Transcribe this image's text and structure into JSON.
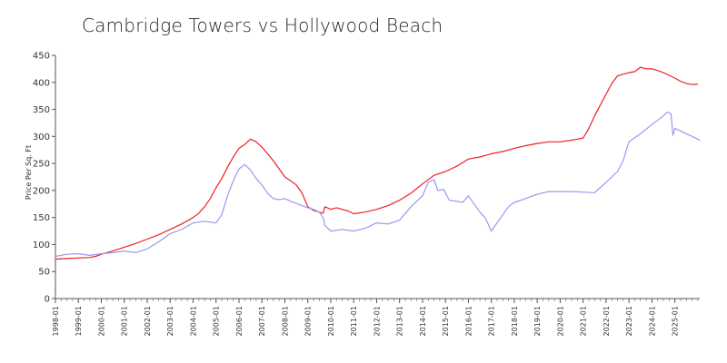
{
  "chart_data": {
    "type": "line",
    "title": "Cambridge Towers vs Hollywood Beach",
    "xlabel": "",
    "ylabel": "Price Per Sq. Ft",
    "ylim": [
      0,
      450
    ],
    "y_ticks": [
      0,
      50,
      100,
      150,
      200,
      250,
      300,
      350,
      400,
      450
    ],
    "x_range": [
      "1998-01",
      "2026-02"
    ],
    "x_tick_labels": [
      "1998-01",
      "1999-01",
      "2000-01",
      "2001-01",
      "2002-01",
      "2003-01",
      "2004-01",
      "2005-01",
      "2006-01",
      "2007-01",
      "2008-01",
      "2009-01",
      "2010-01",
      "2011-01",
      "2012-01",
      "2013-01",
      "2014-01",
      "2015-01",
      "2016-01",
      "2017-01",
      "2018-01",
      "2019-01",
      "2020-01",
      "2021-01",
      "2022-01",
      "2023-01",
      "2024-01",
      "2025-01"
    ],
    "grid": false,
    "legend": "none",
    "series": [
      {
        "color": "#ee2222",
        "points": [
          [
            "1998-01",
            73
          ],
          [
            "1998-07",
            74
          ],
          [
            "1999-01",
            75
          ],
          [
            "1999-07",
            76
          ],
          [
            "1999-10",
            78
          ],
          [
            "2000-01",
            82
          ],
          [
            "2000-07",
            88
          ],
          [
            "2001-01",
            95
          ],
          [
            "2001-07",
            102
          ],
          [
            "2002-01",
            110
          ],
          [
            "2002-07",
            118
          ],
          [
            "2003-01",
            128
          ],
          [
            "2003-07",
            138
          ],
          [
            "2004-01",
            150
          ],
          [
            "2004-04",
            158
          ],
          [
            "2004-07",
            170
          ],
          [
            "2004-10",
            185
          ],
          [
            "2005-01",
            205
          ],
          [
            "2005-04",
            222
          ],
          [
            "2005-07",
            243
          ],
          [
            "2005-10",
            262
          ],
          [
            "2006-01",
            278
          ],
          [
            "2006-04",
            285
          ],
          [
            "2006-07",
            295
          ],
          [
            "2006-10",
            290
          ],
          [
            "2007-01",
            280
          ],
          [
            "2007-04",
            268
          ],
          [
            "2007-07",
            255
          ],
          [
            "2007-10",
            240
          ],
          [
            "2008-01",
            225
          ],
          [
            "2008-04",
            218
          ],
          [
            "2008-07",
            210
          ],
          [
            "2008-10",
            195
          ],
          [
            "2009-01",
            170
          ],
          [
            "2009-04",
            163
          ],
          [
            "2009-07",
            160
          ],
          [
            "2009-09",
            158
          ],
          [
            "2009-10",
            170
          ],
          [
            "2010-01",
            165
          ],
          [
            "2010-04",
            168
          ],
          [
            "2010-07",
            165
          ],
          [
            "2010-10",
            162
          ],
          [
            "2011-01",
            157
          ],
          [
            "2011-07",
            160
          ],
          [
            "2012-01",
            165
          ],
          [
            "2012-07",
            172
          ],
          [
            "2013-01",
            182
          ],
          [
            "2013-07",
            195
          ],
          [
            "2014-01",
            212
          ],
          [
            "2014-07",
            228
          ],
          [
            "2015-01",
            235
          ],
          [
            "2015-07",
            245
          ],
          [
            "2016-01",
            258
          ],
          [
            "2016-07",
            262
          ],
          [
            "2017-01",
            268
          ],
          [
            "2017-07",
            272
          ],
          [
            "2018-01",
            278
          ],
          [
            "2018-07",
            283
          ],
          [
            "2019-01",
            287
          ],
          [
            "2019-07",
            290
          ],
          [
            "2020-01",
            290
          ],
          [
            "2020-07",
            293
          ],
          [
            "2021-01",
            297
          ],
          [
            "2021-04",
            315
          ],
          [
            "2021-07",
            338
          ],
          [
            "2021-10",
            358
          ],
          [
            "2022-01",
            378
          ],
          [
            "2022-04",
            398
          ],
          [
            "2022-07",
            412
          ],
          [
            "2022-10",
            415
          ],
          [
            "2023-01",
            418
          ],
          [
            "2023-04",
            420
          ],
          [
            "2023-07",
            428
          ],
          [
            "2023-10",
            425
          ],
          [
            "2024-01",
            425
          ],
          [
            "2024-04",
            422
          ],
          [
            "2024-07",
            418
          ],
          [
            "2024-10",
            413
          ],
          [
            "2025-01",
            408
          ],
          [
            "2025-04",
            402
          ],
          [
            "2025-07",
            398
          ],
          [
            "2025-10",
            396
          ],
          [
            "2026-01",
            397
          ]
        ]
      },
      {
        "color": "#9999ee",
        "points": [
          [
            "1998-01",
            78
          ],
          [
            "1998-07",
            82
          ],
          [
            "1999-01",
            83
          ],
          [
            "1999-07",
            80
          ],
          [
            "2000-01",
            83
          ],
          [
            "2000-07",
            85
          ],
          [
            "2001-01",
            88
          ],
          [
            "2001-07",
            85
          ],
          [
            "2002-01",
            92
          ],
          [
            "2002-07",
            105
          ],
          [
            "2003-01",
            120
          ],
          [
            "2003-07",
            128
          ],
          [
            "2004-01",
            140
          ],
          [
            "2004-07",
            143
          ],
          [
            "2005-01",
            140
          ],
          [
            "2005-04",
            155
          ],
          [
            "2005-07",
            190
          ],
          [
            "2005-10",
            218
          ],
          [
            "2006-01",
            240
          ],
          [
            "2006-04",
            248
          ],
          [
            "2006-07",
            238
          ],
          [
            "2006-10",
            222
          ],
          [
            "2007-01",
            210
          ],
          [
            "2007-04",
            195
          ],
          [
            "2007-07",
            185
          ],
          [
            "2007-10",
            183
          ],
          [
            "2008-01",
            185
          ],
          [
            "2008-04",
            180
          ],
          [
            "2008-07",
            176
          ],
          [
            "2008-10",
            172
          ],
          [
            "2009-01",
            168
          ],
          [
            "2009-04",
            165
          ],
          [
            "2009-07",
            160
          ],
          [
            "2009-09",
            150
          ],
          [
            "2009-10",
            135
          ],
          [
            "2010-01",
            125
          ],
          [
            "2010-07",
            128
          ],
          [
            "2011-01",
            125
          ],
          [
            "2011-07",
            130
          ],
          [
            "2012-01",
            140
          ],
          [
            "2012-07",
            138
          ],
          [
            "2013-01",
            145
          ],
          [
            "2013-07",
            170
          ],
          [
            "2014-01",
            190
          ],
          [
            "2014-04",
            215
          ],
          [
            "2014-07",
            220
          ],
          [
            "2014-09",
            200
          ],
          [
            "2014-12",
            202
          ],
          [
            "2015-03",
            182
          ],
          [
            "2015-07",
            180
          ],
          [
            "2015-10",
            178
          ],
          [
            "2016-01",
            190
          ],
          [
            "2016-04",
            175
          ],
          [
            "2016-07",
            160
          ],
          [
            "2016-10",
            148
          ],
          [
            "2017-01",
            125
          ],
          [
            "2017-04",
            140
          ],
          [
            "2017-07",
            155
          ],
          [
            "2017-10",
            170
          ],
          [
            "2018-01",
            178
          ],
          [
            "2018-07",
            185
          ],
          [
            "2019-01",
            193
          ],
          [
            "2019-07",
            198
          ],
          [
            "2020-01",
            198
          ],
          [
            "2020-07",
            198
          ],
          [
            "2021-01",
            197
          ],
          [
            "2021-07",
            196
          ],
          [
            "2022-01",
            215
          ],
          [
            "2022-07",
            235
          ],
          [
            "2022-10",
            255
          ],
          [
            "2022-12",
            280
          ],
          [
            "2023-01",
            290
          ],
          [
            "2023-07",
            305
          ],
          [
            "2024-01",
            322
          ],
          [
            "2024-07",
            338
          ],
          [
            "2024-09",
            345
          ],
          [
            "2024-11",
            342
          ],
          [
            "2024-12",
            302
          ],
          [
            "2025-01",
            315
          ],
          [
            "2025-07",
            305
          ],
          [
            "2026-01",
            295
          ],
          [
            "2026-02",
            292
          ]
        ]
      }
    ]
  }
}
